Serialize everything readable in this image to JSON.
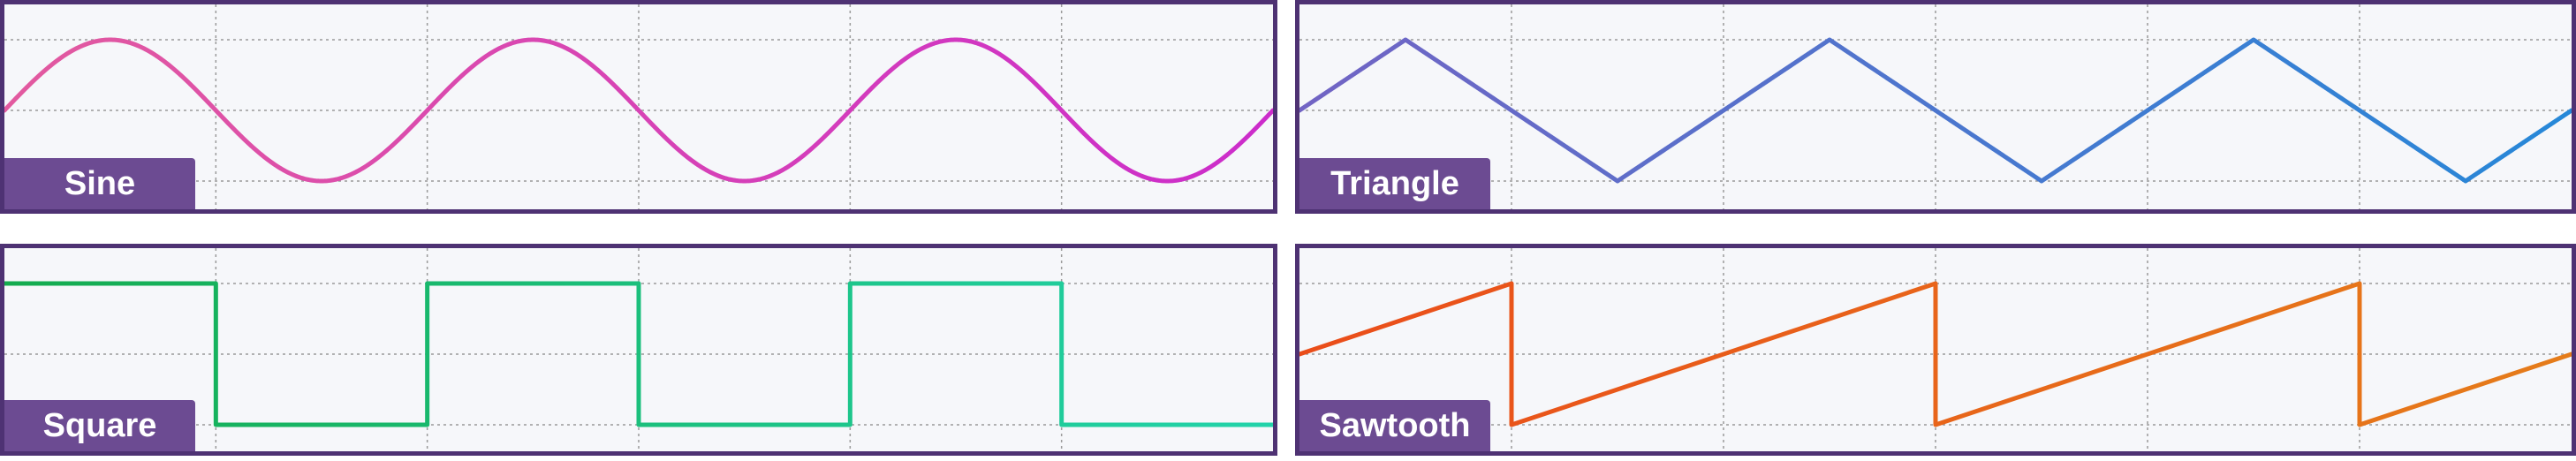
{
  "panels": [
    {
      "id": "sine",
      "label": "Sine",
      "waveform": "sine",
      "cycles": 3,
      "start_phase": "midline-rising",
      "colors": {
        "start": "#e25a9f",
        "end": "#cc2ccb"
      }
    },
    {
      "id": "triangle",
      "label": "Triangle",
      "waveform": "triangle",
      "cycles": 3,
      "start_phase": "midline-rising",
      "colors": {
        "start": "#7264c4",
        "end": "#2688d8"
      }
    },
    {
      "id": "square",
      "label": "Square",
      "waveform": "square",
      "cycles": 3,
      "start_phase": "high",
      "colors": {
        "start": "#14ab4e",
        "end": "#22d3aa"
      }
    },
    {
      "id": "sawtooth",
      "label": "Sawtooth",
      "waveform": "sawtooth",
      "cycles": 3,
      "start_phase": "midline-rising",
      "colors": {
        "start": "#ea4d1a",
        "end": "#e57c1a"
      }
    }
  ],
  "grid": {
    "vertical_divisions": 6,
    "horizontal_lines": 3,
    "style": "dotted"
  },
  "colors": {
    "frame": "#4e3273",
    "label_background": "#6c4b92",
    "label_text": "#ffffff",
    "plot_background": "#f6f7fa",
    "grid": "#9a9a9a"
  }
}
